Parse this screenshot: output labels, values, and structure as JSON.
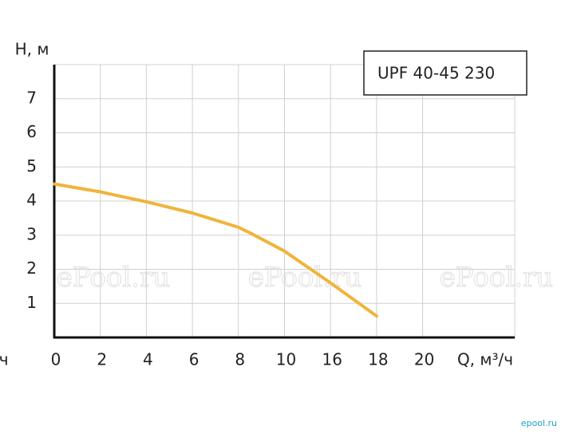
{
  "chart_data": {
    "type": "line",
    "y_label": "H, м",
    "x_label": "Q, м³/ч",
    "legend_box": "UPF 40-45  230",
    "edge_text": "/ч",
    "watermarks": [
      "ePool.ru",
      "ePool.ru",
      "ePool.ru"
    ],
    "corner_mark": "epool.ru",
    "x": [
      0,
      2,
      4,
      6,
      8,
      8.5,
      10,
      16,
      18
    ],
    "series": [
      {
        "name": "UPF 40-45  230",
        "color": "#f0b43c",
        "values": [
          4.5,
          4.27,
          3.98,
          3.65,
          3.23,
          3.07,
          2.53,
          1.6,
          0.63
        ]
      }
    ],
    "xlim": [
      0,
      24
    ],
    "xticks": [
      0,
      2,
      4,
      6,
      8,
      10,
      16,
      18,
      20
    ],
    "ylim": [
      0,
      8
    ],
    "yticks": [
      1,
      2,
      3,
      4,
      5,
      6,
      7
    ],
    "grid": true
  }
}
